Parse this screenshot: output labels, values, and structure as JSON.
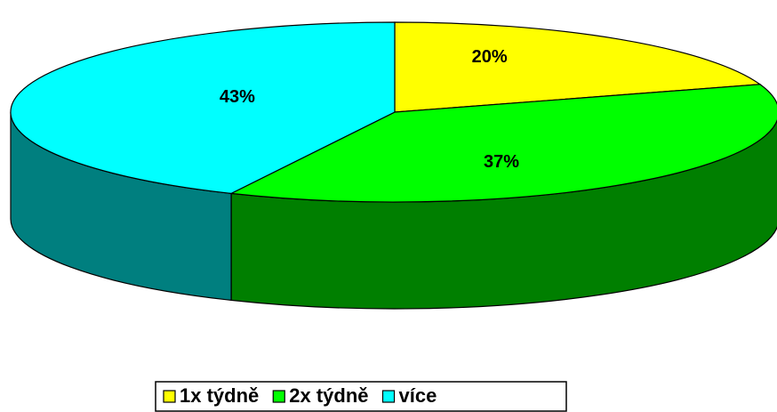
{
  "chart_data": {
    "type": "pie",
    "categories": [
      "1x týdně",
      "2x týdně",
      "více"
    ],
    "values": [
      20,
      37,
      43
    ],
    "value_labels": [
      "20%",
      "37%",
      "43%"
    ],
    "colors": [
      "#ffff00",
      "#00ff00",
      "#00ffff"
    ],
    "legend": "bottom"
  }
}
